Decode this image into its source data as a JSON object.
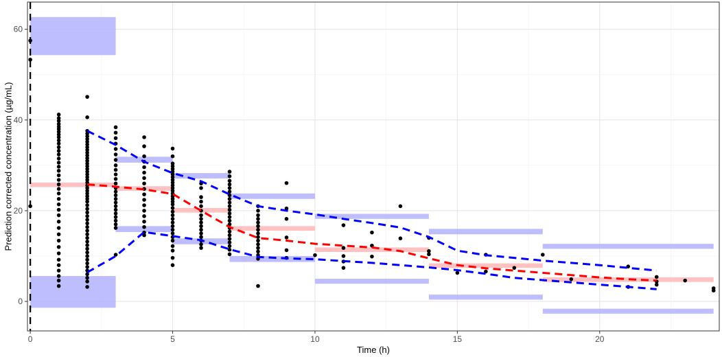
{
  "chart_data": {
    "type": "scatter",
    "title": "",
    "xlabel": "Time (h)",
    "ylabel": "Prediction corrected concentration (µg/mL)",
    "xlim": [
      -0.1,
      24.2
    ],
    "ylim": [
      -6.5,
      66
    ],
    "x_ticks": [
      0,
      5,
      10,
      15,
      20
    ],
    "y_ticks": [
      0,
      20,
      40,
      60
    ],
    "grid": true,
    "legend": "none",
    "colors": {
      "points": "#000000",
      "observed_median": "#ff0000",
      "observed_percentiles": "#0000ff",
      "pi_median": "#ffb6b6",
      "pi_percentiles": "#b3b3ff",
      "dose_line": "#000000"
    },
    "dose_time": 0,
    "points": [
      [
        0,
        57.5
      ],
      [
        0,
        53.3
      ],
      [
        0,
        21
      ],
      [
        1,
        41.2
      ],
      [
        1,
        40.4
      ],
      [
        1,
        39.8
      ],
      [
        1,
        39.1
      ],
      [
        1,
        38.5
      ],
      [
        1,
        38.0
      ],
      [
        1,
        37.4
      ],
      [
        1,
        36.8
      ],
      [
        1,
        36.2
      ],
      [
        1,
        35.5
      ],
      [
        1,
        34.8
      ],
      [
        1,
        34.0
      ],
      [
        1,
        33.2
      ],
      [
        1,
        32.4
      ],
      [
        1,
        31.5
      ],
      [
        1,
        30.6
      ],
      [
        1,
        29.7
      ],
      [
        1,
        28.8
      ],
      [
        1,
        27.8
      ],
      [
        1,
        26.8
      ],
      [
        1,
        25.8
      ],
      [
        1,
        24.8
      ],
      [
        1,
        23.8
      ],
      [
        1,
        22.6
      ],
      [
        1,
        21.4
      ],
      [
        1,
        20.2
      ],
      [
        1,
        19.0
      ],
      [
        1,
        17.6
      ],
      [
        1,
        16.2
      ],
      [
        1,
        14.8
      ],
      [
        1,
        13.4
      ],
      [
        1,
        12.0
      ],
      [
        1,
        10.6
      ],
      [
        1,
        9.2
      ],
      [
        1,
        8.0
      ],
      [
        1,
        6.8
      ],
      [
        1,
        5.6
      ],
      [
        1,
        4.6
      ],
      [
        1,
        3.4
      ],
      [
        2,
        45.1
      ],
      [
        2,
        40.6
      ],
      [
        2,
        37.6
      ],
      [
        2,
        37.0
      ],
      [
        2,
        36.4
      ],
      [
        2,
        35.8
      ],
      [
        2,
        35.2
      ],
      [
        2,
        34.6
      ],
      [
        2,
        34.0
      ],
      [
        2,
        33.4
      ],
      [
        2,
        32.8
      ],
      [
        2,
        32.2
      ],
      [
        2,
        31.6
      ],
      [
        2,
        31.0
      ],
      [
        2,
        30.4
      ],
      [
        2,
        29.8
      ],
      [
        2,
        29.2
      ],
      [
        2,
        28.6
      ],
      [
        2,
        28.0
      ],
      [
        2,
        27.4
      ],
      [
        2,
        26.8
      ],
      [
        2,
        26.2
      ],
      [
        2,
        25.6
      ],
      [
        2,
        25.0
      ],
      [
        2,
        24.4
      ],
      [
        2,
        23.8
      ],
      [
        2,
        23.2
      ],
      [
        2,
        22.6
      ],
      [
        2,
        22.0
      ],
      [
        2,
        21.2
      ],
      [
        2,
        20.4
      ],
      [
        2,
        19.6
      ],
      [
        2,
        18.8
      ],
      [
        2,
        18.0
      ],
      [
        2,
        17.2
      ],
      [
        2,
        16.4
      ],
      [
        2,
        15.6
      ],
      [
        2,
        14.8
      ],
      [
        2,
        14.0
      ],
      [
        2,
        13.2
      ],
      [
        2,
        12.4
      ],
      [
        2,
        11.6
      ],
      [
        2,
        10.8
      ],
      [
        2,
        10.0
      ],
      [
        2,
        9.2
      ],
      [
        2,
        8.4
      ],
      [
        2,
        7.6
      ],
      [
        2,
        6.8
      ],
      [
        2,
        6.0
      ],
      [
        2,
        5.2
      ],
      [
        2,
        4.4
      ],
      [
        2,
        3.2
      ],
      [
        3,
        38.4
      ],
      [
        3,
        37.2
      ],
      [
        3,
        36.0
      ],
      [
        3,
        34.8
      ],
      [
        3,
        33.6
      ],
      [
        3,
        32.4
      ],
      [
        3,
        31.2
      ],
      [
        3,
        30.0
      ],
      [
        3,
        29.0
      ],
      [
        3,
        28.0
      ],
      [
        3,
        27.0
      ],
      [
        3,
        26.0
      ],
      [
        3,
        25.0
      ],
      [
        3,
        24.2
      ],
      [
        3,
        23.4
      ],
      [
        3,
        22.6
      ],
      [
        3,
        21.8
      ],
      [
        3,
        21.0
      ],
      [
        3,
        20.2
      ],
      [
        3,
        19.4
      ],
      [
        3,
        18.6
      ],
      [
        3,
        17.8
      ],
      [
        3,
        17.0
      ],
      [
        3,
        16.2
      ],
      [
        3,
        10.3
      ],
      [
        4,
        36.2
      ],
      [
        4,
        34.2
      ],
      [
        4,
        32.0
      ],
      [
        4,
        30.8
      ],
      [
        4,
        29.6
      ],
      [
        4,
        28.4
      ],
      [
        4,
        27.2
      ],
      [
        4,
        26.0
      ],
      [
        4,
        24.8
      ],
      [
        4,
        23.6
      ],
      [
        4,
        22.4
      ],
      [
        4,
        21.2
      ],
      [
        4,
        20.0
      ],
      [
        4,
        18.8
      ],
      [
        4,
        17.6
      ],
      [
        4,
        16.4
      ],
      [
        4,
        15.2
      ],
      [
        4,
        14.6
      ],
      [
        5,
        33.7
      ],
      [
        5,
        32.0
      ],
      [
        5,
        30.4
      ],
      [
        5,
        29.8
      ],
      [
        5,
        29.2
      ],
      [
        5,
        28.6
      ],
      [
        5,
        28.0
      ],
      [
        5,
        27.4
      ],
      [
        5,
        26.8
      ],
      [
        5,
        26.2
      ],
      [
        5,
        25.6
      ],
      [
        5,
        25.0
      ],
      [
        5,
        24.4
      ],
      [
        5,
        23.8
      ],
      [
        5,
        23.2
      ],
      [
        5,
        22.6
      ],
      [
        5,
        22.0
      ],
      [
        5,
        21.4
      ],
      [
        5,
        20.6
      ],
      [
        5,
        19.8
      ],
      [
        5,
        19.0
      ],
      [
        5,
        18.2
      ],
      [
        5,
        17.4
      ],
      [
        5,
        16.6
      ],
      [
        5,
        15.8
      ],
      [
        5,
        15.0
      ],
      [
        5,
        14.2
      ],
      [
        5,
        13.4
      ],
      [
        5,
        12.2
      ],
      [
        5,
        11.2
      ],
      [
        5,
        9.6
      ],
      [
        5,
        8.0
      ],
      [
        6,
        26.0
      ],
      [
        6,
        25.0
      ],
      [
        6,
        23.0
      ],
      [
        6,
        22.0
      ],
      [
        6,
        21.0
      ],
      [
        6,
        20.0
      ],
      [
        6,
        19.0
      ],
      [
        6,
        18.2
      ],
      [
        6,
        17.4
      ],
      [
        6,
        16.6
      ],
      [
        6,
        15.8
      ],
      [
        6,
        15.0
      ],
      [
        6,
        14.2
      ],
      [
        6,
        13.4
      ],
      [
        6,
        12.6
      ],
      [
        6,
        11.8
      ],
      [
        7,
        28.6
      ],
      [
        7,
        27.6
      ],
      [
        7,
        26.6
      ],
      [
        7,
        25.8
      ],
      [
        7,
        25.0
      ],
      [
        7,
        24.2
      ],
      [
        7,
        23.4
      ],
      [
        7,
        22.6
      ],
      [
        7,
        21.8
      ],
      [
        7,
        21.0
      ],
      [
        7,
        20.2
      ],
      [
        7,
        19.4
      ],
      [
        7,
        18.6
      ],
      [
        7,
        17.8
      ],
      [
        7,
        17.0
      ],
      [
        7,
        16.2
      ],
      [
        7,
        15.4
      ],
      [
        7,
        14.6
      ],
      [
        7,
        13.8
      ],
      [
        7,
        13.0
      ],
      [
        7,
        12.2
      ],
      [
        7,
        11.4
      ],
      [
        7,
        10.4
      ],
      [
        8,
        21.0
      ],
      [
        8,
        20.0
      ],
      [
        8,
        19.0
      ],
      [
        8,
        18.2
      ],
      [
        8,
        17.4
      ],
      [
        8,
        16.6
      ],
      [
        8,
        15.8
      ],
      [
        8,
        15.0
      ],
      [
        8,
        14.2
      ],
      [
        8,
        13.4
      ],
      [
        8,
        12.6
      ],
      [
        8,
        11.8
      ],
      [
        8,
        11.0
      ],
      [
        8,
        10.2
      ],
      [
        8,
        9.4
      ],
      [
        8,
        3.4
      ],
      [
        9,
        26.1
      ],
      [
        9,
        20.5
      ],
      [
        9,
        18.2
      ],
      [
        9,
        14.1
      ],
      [
        9,
        11.3
      ],
      [
        9,
        9.6
      ],
      [
        10,
        10.2
      ],
      [
        11,
        16.8
      ],
      [
        11,
        11.8
      ],
      [
        11,
        10.0
      ],
      [
        11,
        8.8
      ],
      [
        11,
        7.4
      ],
      [
        12,
        15.2
      ],
      [
        12,
        12.3
      ],
      [
        12,
        9.9
      ],
      [
        13,
        21.0
      ],
      [
        13,
        13.9
      ],
      [
        14,
        14.0
      ],
      [
        14,
        11.1
      ],
      [
        14,
        10.4
      ],
      [
        15,
        6.3
      ],
      [
        16,
        10.3
      ],
      [
        16,
        6.6
      ],
      [
        17,
        7.4
      ],
      [
        18,
        10.3
      ],
      [
        19,
        4.9
      ],
      [
        21,
        7.7
      ],
      [
        21,
        3.2
      ],
      [
        22,
        5.4
      ],
      [
        22,
        4.4
      ],
      [
        22,
        3.7
      ],
      [
        23,
        4.6
      ],
      [
        24,
        2.9
      ],
      [
        24,
        2.4
      ]
    ],
    "observed_median": [
      [
        2,
        25.8
      ],
      [
        3,
        25.3
      ],
      [
        4,
        24.7
      ],
      [
        5,
        23.7
      ],
      [
        6,
        20.0
      ],
      [
        7,
        16.4
      ],
      [
        8,
        14.0
      ],
      [
        9,
        13.4
      ],
      [
        10,
        12.7
      ],
      [
        11,
        12.3
      ],
      [
        12,
        11.9
      ],
      [
        13,
        11.1
      ],
      [
        14,
        9.5
      ],
      [
        15,
        8.0
      ],
      [
        16,
        7.3
      ],
      [
        17,
        6.8
      ],
      [
        18,
        6.3
      ],
      [
        19,
        5.8
      ],
      [
        20,
        5.3
      ],
      [
        21,
        4.9
      ],
      [
        22,
        4.6
      ]
    ],
    "observed_p95": [
      [
        2,
        37.6
      ],
      [
        3,
        34.5
      ],
      [
        4,
        30.8
      ],
      [
        5,
        28.3
      ],
      [
        6,
        26.5
      ],
      [
        7,
        23.6
      ],
      [
        8,
        21.0
      ],
      [
        9,
        20.0
      ],
      [
        10,
        19.2
      ],
      [
        11,
        18.2
      ],
      [
        12,
        17.3
      ],
      [
        13,
        16.3
      ],
      [
        14,
        14.2
      ],
      [
        15,
        11.2
      ],
      [
        16,
        10.2
      ],
      [
        17,
        9.6
      ],
      [
        18,
        9.0
      ],
      [
        19,
        8.5
      ],
      [
        20,
        8.0
      ],
      [
        21,
        7.4
      ],
      [
        22,
        6.8
      ]
    ],
    "observed_p5": [
      [
        2,
        6.4
      ],
      [
        3,
        10.0
      ],
      [
        4,
        15.3
      ],
      [
        5,
        14.4
      ],
      [
        6,
        13.5
      ],
      [
        7,
        11.5
      ],
      [
        8,
        9.8
      ],
      [
        9,
        9.5
      ],
      [
        10,
        9.3
      ],
      [
        11,
        8.9
      ],
      [
        12,
        8.5
      ],
      [
        13,
        8.0
      ],
      [
        14,
        7.5
      ],
      [
        15,
        6.9
      ],
      [
        16,
        6.1
      ],
      [
        17,
        5.2
      ],
      [
        18,
        4.7
      ],
      [
        19,
        4.2
      ],
      [
        20,
        3.7
      ],
      [
        21,
        3.2
      ],
      [
        22,
        2.7
      ]
    ],
    "pi_bins": [
      {
        "x_range": [
          0,
          3
        ],
        "median": [
          25.2,
          26.2
        ],
        "upper": [
          54.3,
          62.7
        ],
        "lower": [
          -1.4,
          5.6
        ]
      },
      {
        "x_range": [
          3,
          5
        ],
        "median": [
          24.4,
          25.4
        ],
        "upper": [
          30.6,
          31.9
        ],
        "lower": [
          15.3,
          16.6
        ]
      },
      {
        "x_range": [
          5,
          7
        ],
        "median": [
          19.6,
          20.6
        ],
        "upper": [
          27.1,
          28.3
        ],
        "lower": [
          12.6,
          13.9
        ]
      },
      {
        "x_range": [
          7,
          10
        ],
        "median": [
          15.6,
          16.6
        ],
        "upper": [
          22.6,
          23.8
        ],
        "lower": [
          8.7,
          10.0
        ]
      },
      {
        "x_range": [
          10,
          14
        ],
        "median": [
          10.9,
          11.9
        ],
        "upper": [
          18.2,
          19.3
        ],
        "lower": [
          3.9,
          5.0
        ]
      },
      {
        "x_range": [
          14,
          18
        ],
        "median": [
          7.4,
          8.4
        ],
        "upper": [
          14.8,
          16.0
        ],
        "lower": [
          0.4,
          1.5
        ]
      },
      {
        "x_range": [
          18,
          24
        ],
        "median": [
          4.3,
          5.3
        ],
        "upper": [
          11.6,
          12.7
        ],
        "lower": [
          -2.7,
          -1.6
        ]
      }
    ]
  }
}
